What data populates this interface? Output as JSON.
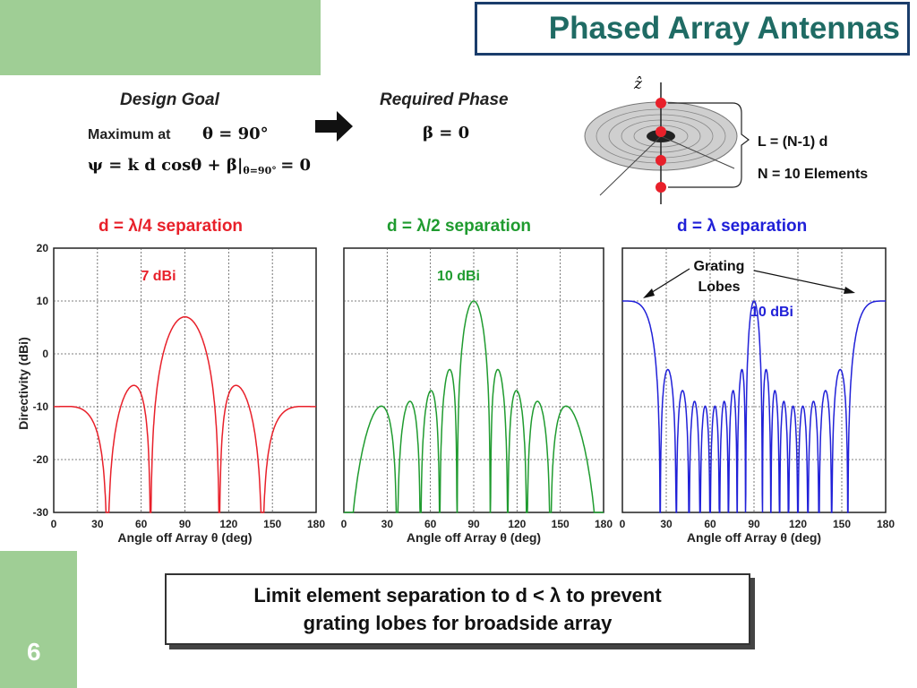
{
  "slide": {
    "title": "Phased Array Antennas",
    "number": "6"
  },
  "top": {
    "design_goal_heading": "Design Goal",
    "max_label": "Maximum at",
    "max_eq": "θ = 90°",
    "psi_eq": "ψ = k d cosθ + β|",
    "psi_sub": "θ=90°",
    "psi_rhs": "= 0",
    "required_heading": "Required Phase",
    "beta_eq": "β = 0",
    "z_axis_label": "ẑ",
    "length_label": "L = (N-1) d",
    "elements_label": "N = 10 Elements"
  },
  "callout": {
    "line1": "Limit element separation to d < λ to prevent",
    "line2": "grating lobes for broadside array"
  },
  "colors": {
    "red": "#e8202a",
    "green": "#1f9b2f",
    "blue": "#2020d8",
    "title": "#1f6b64",
    "accent": "#9fce95"
  },
  "chart_data": [
    {
      "type": "line",
      "title": "d = λ/4 separation",
      "xlabel": "Angle off Array θ (deg)",
      "ylabel": "Directivity (dBi)",
      "xlim": [
        0,
        180
      ],
      "ylim": [
        -30,
        20
      ],
      "xticks": [
        0,
        30,
        60,
        90,
        120,
        150,
        180
      ],
      "yticks": [
        20,
        10,
        0,
        -10,
        -20,
        -30
      ],
      "grid": true,
      "annotation": "7 dBi",
      "series": [
        {
          "d_over_lambda": 0.25,
          "elements": 10,
          "peak_dbi": 7,
          "x_range": [
            0,
            180
          ]
        }
      ]
    },
    {
      "type": "line",
      "title": "d = λ/2 separation",
      "xlabel": "Angle off Array θ (deg)",
      "ylabel": "",
      "xlim": [
        0,
        180
      ],
      "ylim": [
        -30,
        20
      ],
      "xticks": [
        0,
        30,
        60,
        90,
        120,
        150,
        180
      ],
      "grid": true,
      "annotation": "10 dBi",
      "series": [
        {
          "d_over_lambda": 0.5,
          "elements": 10,
          "peak_dbi": 10,
          "x_range": [
            0,
            180
          ]
        }
      ]
    },
    {
      "type": "line",
      "title": "d = λ separation",
      "xlabel": "Angle off Array θ (deg)",
      "ylabel": "",
      "xlim": [
        0,
        180
      ],
      "ylim": [
        -30,
        20
      ],
      "xticks": [
        0,
        30,
        60,
        90,
        120,
        150,
        180
      ],
      "grid": true,
      "annotation": "10 dBi",
      "callout_label": "Grating Lobes",
      "series": [
        {
          "d_over_lambda": 1.0,
          "elements": 10,
          "peak_dbi": 10,
          "x_range": [
            0,
            180
          ]
        }
      ]
    }
  ]
}
